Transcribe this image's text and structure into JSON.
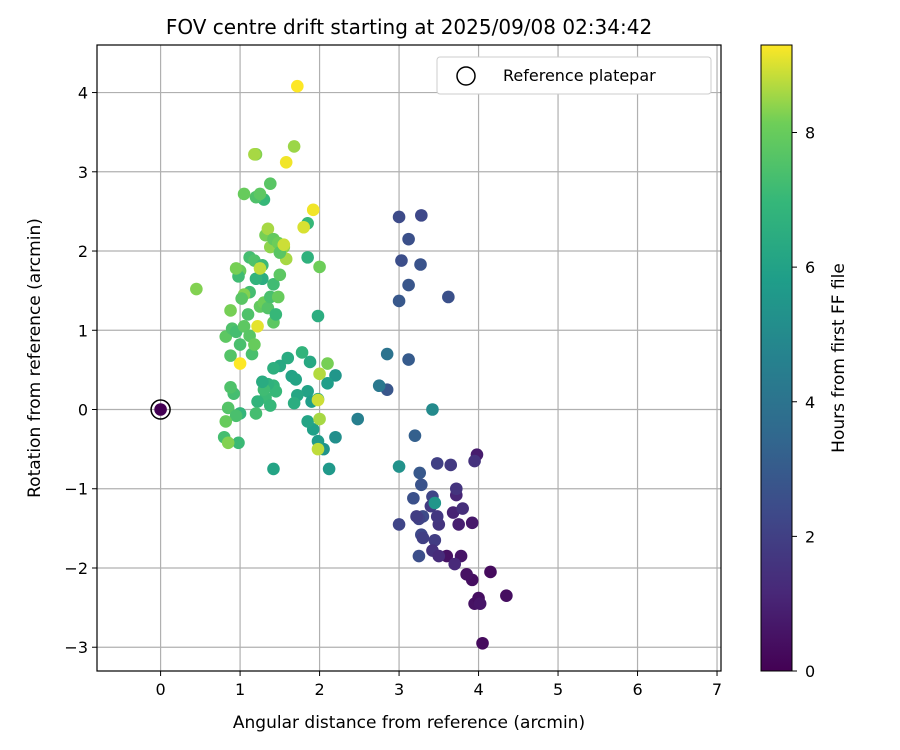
{
  "chart_data": {
    "type": "scatter",
    "title": "FOV centre drift starting at 2025/09/08 02:34:42",
    "xlabel": "Angular distance from reference (arcmin)",
    "ylabel": "Rotation from reference (arcmin)",
    "xlim": [
      -0.8,
      7.05
    ],
    "ylim": [
      -3.3,
      4.6
    ],
    "xticks": [
      0,
      1,
      2,
      3,
      4,
      5,
      6,
      7
    ],
    "yticks": [
      -3,
      -2,
      -1,
      0,
      1,
      2,
      3,
      4
    ],
    "grid": true,
    "legend": {
      "placement": "top-right",
      "entries": [
        "Reference platepar"
      ]
    },
    "colorbar": {
      "label": "Hours from first FF file",
      "range": [
        0,
        9.3
      ],
      "ticks": [
        0,
        2,
        4,
        6,
        8
      ],
      "colormap": "viridis"
    },
    "reference_point": {
      "x": 0,
      "y": 0,
      "hours": 0
    },
    "points": [
      {
        "x": 4.05,
        "y": -2.95,
        "h": 0.3
      },
      {
        "x": 4.35,
        "y": -2.35,
        "h": 0.4
      },
      {
        "x": 4.15,
        "y": -2.05,
        "h": 0.3
      },
      {
        "x": 3.92,
        "y": -2.15,
        "h": 0.4
      },
      {
        "x": 3.95,
        "y": -2.45,
        "h": 0.5
      },
      {
        "x": 4.0,
        "y": -2.38,
        "h": 0.4
      },
      {
        "x": 4.02,
        "y": -2.45,
        "h": 0.6
      },
      {
        "x": 3.85,
        "y": -2.08,
        "h": 0.5
      },
      {
        "x": 3.78,
        "y": -1.85,
        "h": 0.6
      },
      {
        "x": 3.6,
        "y": -1.85,
        "h": 0.5
      },
      {
        "x": 3.92,
        "y": -1.43,
        "h": 0.7
      },
      {
        "x": 3.98,
        "y": -0.57,
        "h": 0.8
      },
      {
        "x": 3.95,
        "y": -0.65,
        "h": 1.5
      },
      {
        "x": 3.75,
        "y": -1.45,
        "h": 0.9
      },
      {
        "x": 3.68,
        "y": -1.3,
        "h": 1.0
      },
      {
        "x": 3.72,
        "y": -1.08,
        "h": 1.1
      },
      {
        "x": 3.8,
        "y": -1.25,
        "h": 1.4
      },
      {
        "x": 3.7,
        "y": -1.95,
        "h": 1.2
      },
      {
        "x": 3.65,
        "y": -0.7,
        "h": 1.8
      },
      {
        "x": 3.48,
        "y": -0.68,
        "h": 2.0
      },
      {
        "x": 3.5,
        "y": -1.45,
        "h": 1.6
      },
      {
        "x": 3.48,
        "y": -1.35,
        "h": 1.7
      },
      {
        "x": 3.45,
        "y": -1.65,
        "h": 1.9
      },
      {
        "x": 3.42,
        "y": -1.78,
        "h": 1.5
      },
      {
        "x": 3.5,
        "y": -1.85,
        "h": 1.3
      },
      {
        "x": 3.42,
        "y": -1.1,
        "h": 2.2
      },
      {
        "x": 3.4,
        "y": -1.22,
        "h": 1.8
      },
      {
        "x": 3.3,
        "y": -1.35,
        "h": 2.4
      },
      {
        "x": 3.25,
        "y": -1.38,
        "h": 2.1
      },
      {
        "x": 3.28,
        "y": -1.58,
        "h": 2.3
      },
      {
        "x": 3.3,
        "y": -1.62,
        "h": 2.0
      },
      {
        "x": 3.25,
        "y": -1.85,
        "h": 2.5
      },
      {
        "x": 3.22,
        "y": -1.35,
        "h": 1.9
      },
      {
        "x": 3.18,
        "y": -1.12,
        "h": 2.6
      },
      {
        "x": 3.28,
        "y": -0.95,
        "h": 2.7
      },
      {
        "x": 3.26,
        "y": -0.8,
        "h": 2.9
      },
      {
        "x": 3.2,
        "y": -0.33,
        "h": 3.2
      },
      {
        "x": 3.0,
        "y": -1.45,
        "h": 2.2
      },
      {
        "x": 3.72,
        "y": -1.0,
        "h": 1.6
      },
      {
        "x": 3.62,
        "y": 1.42,
        "h": 2.6
      },
      {
        "x": 3.0,
        "y": 2.43,
        "h": 2.4
      },
      {
        "x": 3.28,
        "y": 2.45,
        "h": 2.3
      },
      {
        "x": 3.12,
        "y": 2.15,
        "h": 2.6
      },
      {
        "x": 3.03,
        "y": 1.88,
        "h": 2.5
      },
      {
        "x": 3.27,
        "y": 1.83,
        "h": 2.7
      },
      {
        "x": 3.12,
        "y": 1.57,
        "h": 2.8
      },
      {
        "x": 3.0,
        "y": 1.37,
        "h": 2.9
      },
      {
        "x": 3.12,
        "y": 0.63,
        "h": 3.0
      },
      {
        "x": 2.85,
        "y": 0.25,
        "h": 2.8
      },
      {
        "x": 2.85,
        "y": 0.7,
        "h": 4.0
      },
      {
        "x": 2.75,
        "y": 0.3,
        "h": 4.2
      },
      {
        "x": 3.0,
        "y": -0.72,
        "h": 5.3
      },
      {
        "x": 3.42,
        "y": 0.0,
        "h": 5.0
      },
      {
        "x": 3.45,
        "y": -1.18,
        "h": 5.5
      },
      {
        "x": 2.48,
        "y": -0.12,
        "h": 4.5
      },
      {
        "x": 2.2,
        "y": 0.43,
        "h": 5.5
      },
      {
        "x": 2.1,
        "y": 0.33,
        "h": 5.8
      },
      {
        "x": 2.2,
        "y": -0.35,
        "h": 5.2
      },
      {
        "x": 2.12,
        "y": -0.75,
        "h": 5.6
      },
      {
        "x": 2.05,
        "y": -0.5,
        "h": 5.4
      },
      {
        "x": 1.98,
        "y": -0.4,
        "h": 5.7
      },
      {
        "x": 1.92,
        "y": -0.25,
        "h": 5.9
      },
      {
        "x": 1.85,
        "y": -0.15,
        "h": 6.1
      },
      {
        "x": 1.85,
        "y": 0.23,
        "h": 6.0
      },
      {
        "x": 1.9,
        "y": 0.1,
        "h": 5.8
      },
      {
        "x": 1.98,
        "y": 0.13,
        "h": 6.2
      },
      {
        "x": 1.88,
        "y": 0.6,
        "h": 6.3
      },
      {
        "x": 1.78,
        "y": 0.72,
        "h": 6.8
      },
      {
        "x": 1.72,
        "y": 0.18,
        "h": 6.2
      },
      {
        "x": 1.65,
        "y": 0.42,
        "h": 6.0
      },
      {
        "x": 1.7,
        "y": 0.38,
        "h": 6.1
      },
      {
        "x": 1.6,
        "y": 0.65,
        "h": 6.4
      },
      {
        "x": 1.68,
        "y": 0.08,
        "h": 6.5
      },
      {
        "x": 1.5,
        "y": 0.55,
        "h": 6.3
      },
      {
        "x": 1.42,
        "y": 0.52,
        "h": 6.6
      },
      {
        "x": 1.42,
        "y": 0.3,
        "h": 6.9
      },
      {
        "x": 1.45,
        "y": 0.23,
        "h": 7.0
      },
      {
        "x": 1.35,
        "y": 0.32,
        "h": 6.7
      },
      {
        "x": 1.32,
        "y": 0.15,
        "h": 7.1
      },
      {
        "x": 1.3,
        "y": 0.25,
        "h": 7.2
      },
      {
        "x": 1.22,
        "y": 0.1,
        "h": 6.8
      },
      {
        "x": 1.2,
        "y": -0.05,
        "h": 7.3
      },
      {
        "x": 1.28,
        "y": 0.35,
        "h": 6.4
      },
      {
        "x": 1.38,
        "y": 0.05,
        "h": 7.0
      },
      {
        "x": 1.42,
        "y": -0.75,
        "h": 6.1
      },
      {
        "x": 1.0,
        "y": -0.05,
        "h": 6.9
      },
      {
        "x": 0.92,
        "y": 0.2,
        "h": 7.3
      },
      {
        "x": 0.88,
        "y": 0.28,
        "h": 7.5
      },
      {
        "x": 0.85,
        "y": 0.02,
        "h": 7.6
      },
      {
        "x": 0.95,
        "y": -0.08,
        "h": 7.4
      },
      {
        "x": 0.98,
        "y": -0.42,
        "h": 7.1
      },
      {
        "x": 0.8,
        "y": -0.35,
        "h": 7.3
      },
      {
        "x": 0.82,
        "y": -0.15,
        "h": 8.0
      },
      {
        "x": 0.85,
        "y": -0.42,
        "h": 8.3
      },
      {
        "x": 0.82,
        "y": 0.92,
        "h": 7.8
      },
      {
        "x": 0.88,
        "y": 0.68,
        "h": 7.6
      },
      {
        "x": 0.9,
        "y": 1.02,
        "h": 7.5
      },
      {
        "x": 0.95,
        "y": 0.98,
        "h": 7.3
      },
      {
        "x": 1.0,
        "y": 0.82,
        "h": 7.4
      },
      {
        "x": 1.05,
        "y": 1.05,
        "h": 7.8
      },
      {
        "x": 1.1,
        "y": 1.2,
        "h": 7.5
      },
      {
        "x": 1.12,
        "y": 0.93,
        "h": 7.7
      },
      {
        "x": 1.15,
        "y": 0.7,
        "h": 7.4
      },
      {
        "x": 1.18,
        "y": 0.82,
        "h": 8.0
      },
      {
        "x": 1.22,
        "y": 1.05,
        "h": 9.1
      },
      {
        "x": 1.25,
        "y": 1.3,
        "h": 7.9
      },
      {
        "x": 1.3,
        "y": 1.35,
        "h": 8.1
      },
      {
        "x": 1.35,
        "y": 1.28,
        "h": 7.6
      },
      {
        "x": 1.42,
        "y": 1.1,
        "h": 7.8
      },
      {
        "x": 1.45,
        "y": 1.2,
        "h": 7.0
      },
      {
        "x": 1.38,
        "y": 1.42,
        "h": 7.4
      },
      {
        "x": 1.42,
        "y": 1.58,
        "h": 7.2
      },
      {
        "x": 1.48,
        "y": 1.42,
        "h": 8.0
      },
      {
        "x": 1.5,
        "y": 1.7,
        "h": 7.8
      },
      {
        "x": 1.28,
        "y": 1.65,
        "h": 6.5
      },
      {
        "x": 1.2,
        "y": 1.65,
        "h": 6.8
      },
      {
        "x": 1.12,
        "y": 1.48,
        "h": 7.3
      },
      {
        "x": 1.05,
        "y": 1.45,
        "h": 8.3
      },
      {
        "x": 1.0,
        "y": 1.75,
        "h": 8.0
      },
      {
        "x": 0.98,
        "y": 1.68,
        "h": 7.2
      },
      {
        "x": 0.88,
        "y": 1.25,
        "h": 8.2
      },
      {
        "x": 1.02,
        "y": 1.4,
        "h": 7.7
      },
      {
        "x": 1.12,
        "y": 1.92,
        "h": 7.3
      },
      {
        "x": 1.18,
        "y": 1.88,
        "h": 7.5
      },
      {
        "x": 1.28,
        "y": 1.82,
        "h": 7.1
      },
      {
        "x": 1.25,
        "y": 1.78,
        "h": 8.8
      },
      {
        "x": 1.32,
        "y": 2.2,
        "h": 8.2
      },
      {
        "x": 1.35,
        "y": 2.28,
        "h": 8.6
      },
      {
        "x": 1.38,
        "y": 2.05,
        "h": 8.4
      },
      {
        "x": 1.42,
        "y": 2.15,
        "h": 7.9
      },
      {
        "x": 1.48,
        "y": 2.1,
        "h": 8.1
      },
      {
        "x": 1.55,
        "y": 2.05,
        "h": 8.4
      },
      {
        "x": 1.58,
        "y": 1.9,
        "h": 8.6
      },
      {
        "x": 1.5,
        "y": 1.98,
        "h": 7.7
      },
      {
        "x": 1.55,
        "y": 2.08,
        "h": 8.9
      },
      {
        "x": 1.85,
        "y": 1.92,
        "h": 6.7
      },
      {
        "x": 2.0,
        "y": 1.8,
        "h": 8.1
      },
      {
        "x": 1.98,
        "y": 1.18,
        "h": 6.5
      },
      {
        "x": 2.1,
        "y": 0.58,
        "h": 8.2
      },
      {
        "x": 2.0,
        "y": 0.45,
        "h": 8.7
      },
      {
        "x": 1.98,
        "y": 0.12,
        "h": 8.9
      },
      {
        "x": 2.0,
        "y": -0.12,
        "h": 8.6
      },
      {
        "x": 1.98,
        "y": -0.5,
        "h": 8.8
      },
      {
        "x": 1.85,
        "y": 2.35,
        "h": 7.0
      },
      {
        "x": 1.8,
        "y": 2.3,
        "h": 9.0
      },
      {
        "x": 1.92,
        "y": 2.52,
        "h": 9.2
      },
      {
        "x": 1.3,
        "y": 2.65,
        "h": 7.0
      },
      {
        "x": 1.2,
        "y": 2.68,
        "h": 7.5
      },
      {
        "x": 1.25,
        "y": 2.72,
        "h": 7.8
      },
      {
        "x": 1.05,
        "y": 2.72,
        "h": 8.0
      },
      {
        "x": 1.38,
        "y": 2.85,
        "h": 7.7
      },
      {
        "x": 1.2,
        "y": 3.22,
        "h": 8.3
      },
      {
        "x": 1.18,
        "y": 3.22,
        "h": 8.6
      },
      {
        "x": 1.58,
        "y": 3.12,
        "h": 9.2
      },
      {
        "x": 1.68,
        "y": 3.32,
        "h": 8.5
      },
      {
        "x": 1.72,
        "y": 4.08,
        "h": 9.3
      },
      {
        "x": 0.45,
        "y": 1.52,
        "h": 8.3
      },
      {
        "x": 0.95,
        "y": 1.78,
        "h": 8.2
      },
      {
        "x": 1.0,
        "y": 0.58,
        "h": 9.3
      }
    ]
  }
}
